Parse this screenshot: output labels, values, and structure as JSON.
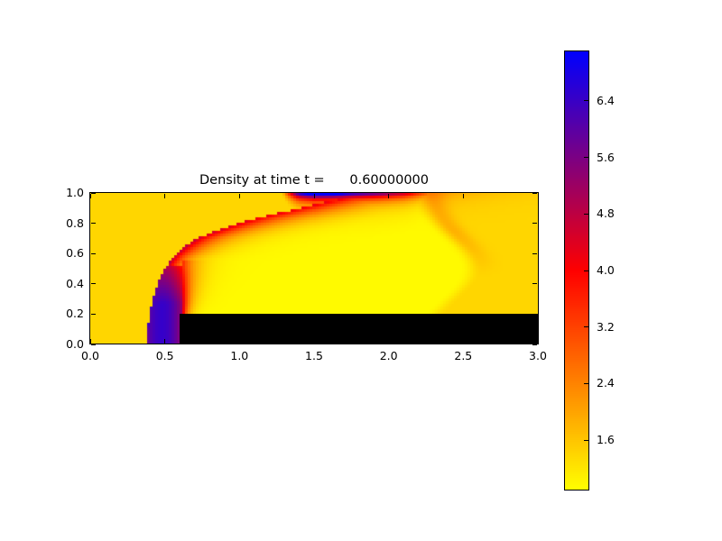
{
  "figure": {
    "background": "#ffffff"
  },
  "chart_data": {
    "type": "heatmap",
    "title": "Density at time t =      0.60000000",
    "xlabel": "",
    "ylabel": "",
    "xlim": [
      0.0,
      3.0
    ],
    "ylim": [
      0.0,
      1.0
    ],
    "x_tick_labels": [
      "0.0",
      "0.5",
      "1.0",
      "1.5",
      "2.0",
      "2.5",
      "3.0"
    ],
    "x_tick_values": [
      0.0,
      0.5,
      1.0,
      1.5,
      2.0,
      2.5,
      3.0
    ],
    "y_tick_labels": [
      "0.0",
      "0.2",
      "0.4",
      "0.6",
      "0.8",
      "1.0"
    ],
    "y_tick_values": [
      0.0,
      0.2,
      0.4,
      0.6,
      0.8,
      1.0
    ],
    "grid": false,
    "colorbar": {
      "position": "right",
      "tick_labels": [
        "6.4",
        "5.6",
        "4.8",
        "4.0",
        "3.2",
        "2.4",
        "1.6"
      ],
      "tick_values": [
        6.4,
        5.6,
        4.8,
        4.0,
        3.2,
        2.4,
        1.6
      ],
      "vmin": 0.9,
      "vmax": 7.1,
      "colormap_stops": [
        [
          0.0,
          "#ffff00"
        ],
        [
          0.5,
          "#ff0000"
        ],
        [
          1.0,
          "#0000ff"
        ]
      ]
    },
    "obstacle_step": {
      "x0": 0.6,
      "x1": 3.0,
      "y0": 0.0,
      "y1": 0.2,
      "color": "#000000"
    },
    "features": [
      "ambient gold region of density ~1.4 upstream and far right",
      "curved bow shock front from (0.38,0) steepening up to the top wall near x=1.3",
      "high-density indigo/purple column (rho ~6.3) ahead of the step face, x 0.40-0.62, y<0.45",
      "expansion fan radiating from the step corner at (0.6,0.2)",
      "bright yellow low-density plateau (rho ~1.0) above the step, x 0.7-2.4",
      "red high-density layer along the top wall from x 1.3 to 2.3 with dark purple core at x 1.4-1.65",
      "weak trailing oblique shock from about (2.2,1.0) down to (2.9,0.2)"
    ],
    "field_model": {
      "grid": {
        "nx": 165,
        "ny": 56
      },
      "front_x_of_y": [
        [
          0,
          0.382
        ],
        [
          0.1,
          0.386
        ],
        [
          0.2,
          0.398
        ],
        [
          0.3,
          0.42
        ],
        [
          0.4,
          0.452
        ],
        [
          0.5,
          0.5
        ],
        [
          0.58,
          0.555
        ],
        [
          0.64,
          0.625
        ],
        [
          0.7,
          0.715
        ],
        [
          0.75,
          0.85
        ],
        [
          0.79,
          0.97
        ],
        [
          0.83,
          1.1
        ],
        [
          0.87,
          1.28
        ],
        [
          0.91,
          1.45
        ],
        [
          1.0,
          1.85
        ]
      ],
      "peak_of_y": [
        [
          0,
          6.45
        ],
        [
          0.3,
          6.45
        ],
        [
          0.45,
          5.4
        ],
        [
          0.55,
          5.1
        ],
        [
          0.65,
          4.85
        ],
        [
          0.75,
          4.55
        ],
        [
          0.85,
          4.3
        ],
        [
          1,
          4.2
        ]
      ],
      "decay_width_of_y": [
        [
          0,
          0.05
        ],
        [
          0.3,
          0.06
        ],
        [
          0.45,
          0.08
        ],
        [
          0.55,
          0.1
        ],
        [
          0.65,
          0.15
        ],
        [
          0.75,
          0.21
        ],
        [
          0.85,
          0.3
        ],
        [
          1,
          0.36
        ]
      ],
      "column": {
        "x_right": 0.615,
        "x_core": 0.48,
        "core_width": 0.14,
        "quad": 1.3,
        "y_top": 0.52,
        "v_core_of_y": [
          [
            0,
            6.45
          ],
          [
            0.27,
            6.45
          ],
          [
            0.52,
            4.95
          ]
        ]
      },
      "fan": {
        "wf0": 0.035,
        "wf_slope": 0.16,
        "y_ref": 0.2,
        "y_max": 0.56
      },
      "plateau": {
        "bright": 0.96,
        "ambient": 1.4,
        "xT_base": 2.2,
        "xT_amp": 0.35,
        "xT_y0": 0.5,
        "xT_sigma": 0.28,
        "trans_width": 0.14,
        "bump_amp": 0.45,
        "bump_offset": 0.08,
        "bump_sigma": 0.08,
        "bump_y0": 0.45,
        "bump_yspan": 0.3
      },
      "top_band": {
        "base": 0.9,
        "core_decay": 0.035,
        "halo_frac": 0.33,
        "halo_decay": 0.095,
        "amplitude_of_x": [
          [
            1.28,
            0
          ],
          [
            1.4,
            5.0
          ],
          [
            1.5,
            6.2
          ],
          [
            1.62,
            6.0
          ],
          [
            1.75,
            5.0
          ],
          [
            1.95,
            4.1
          ],
          [
            2.1,
            3.2
          ],
          [
            2.25,
            1.6
          ],
          [
            2.38,
            0
          ],
          [
            3.0,
            0
          ]
        ]
      }
    }
  }
}
